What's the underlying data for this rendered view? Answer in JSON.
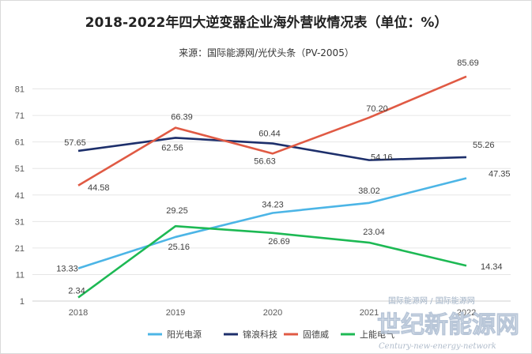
{
  "chart_data": {
    "type": "line",
    "title": "2018-2022年四大逆变器企业海外营收情况表（单位：%）",
    "subtitle": "来源：国际能源网/光伏头条（PV-2005）",
    "categories": [
      "2018",
      "2019",
      "2020",
      "2021",
      "2022"
    ],
    "y_ticks": [
      1,
      11,
      21,
      31,
      41,
      51,
      61,
      71,
      81
    ],
    "ylim": [
      1,
      91
    ],
    "grid": "horizontal",
    "legend_position": "bottom",
    "series": [
      {
        "name": "阳光电源",
        "color": "#4cb5e6",
        "values": [
          13.33,
          25.16,
          34.23,
          38.02,
          47.35
        ]
      },
      {
        "name": "锦浪科技",
        "color": "#1d2f6b",
        "values": [
          57.65,
          62.56,
          60.44,
          54.16,
          55.26
        ]
      },
      {
        "name": "固德威",
        "color": "#e05a44",
        "values": [
          44.58,
          66.39,
          56.63,
          70.2,
          85.69
        ]
      },
      {
        "name": "上能电气",
        "color": "#1db954",
        "values": [
          2.34,
          29.25,
          26.69,
          23.04,
          14.34
        ]
      }
    ]
  },
  "watermark": {
    "line1": "国际能源网 / 国际能源网",
    "line2": "世纪新能源网",
    "line3": "Century-new-energy-network"
  }
}
